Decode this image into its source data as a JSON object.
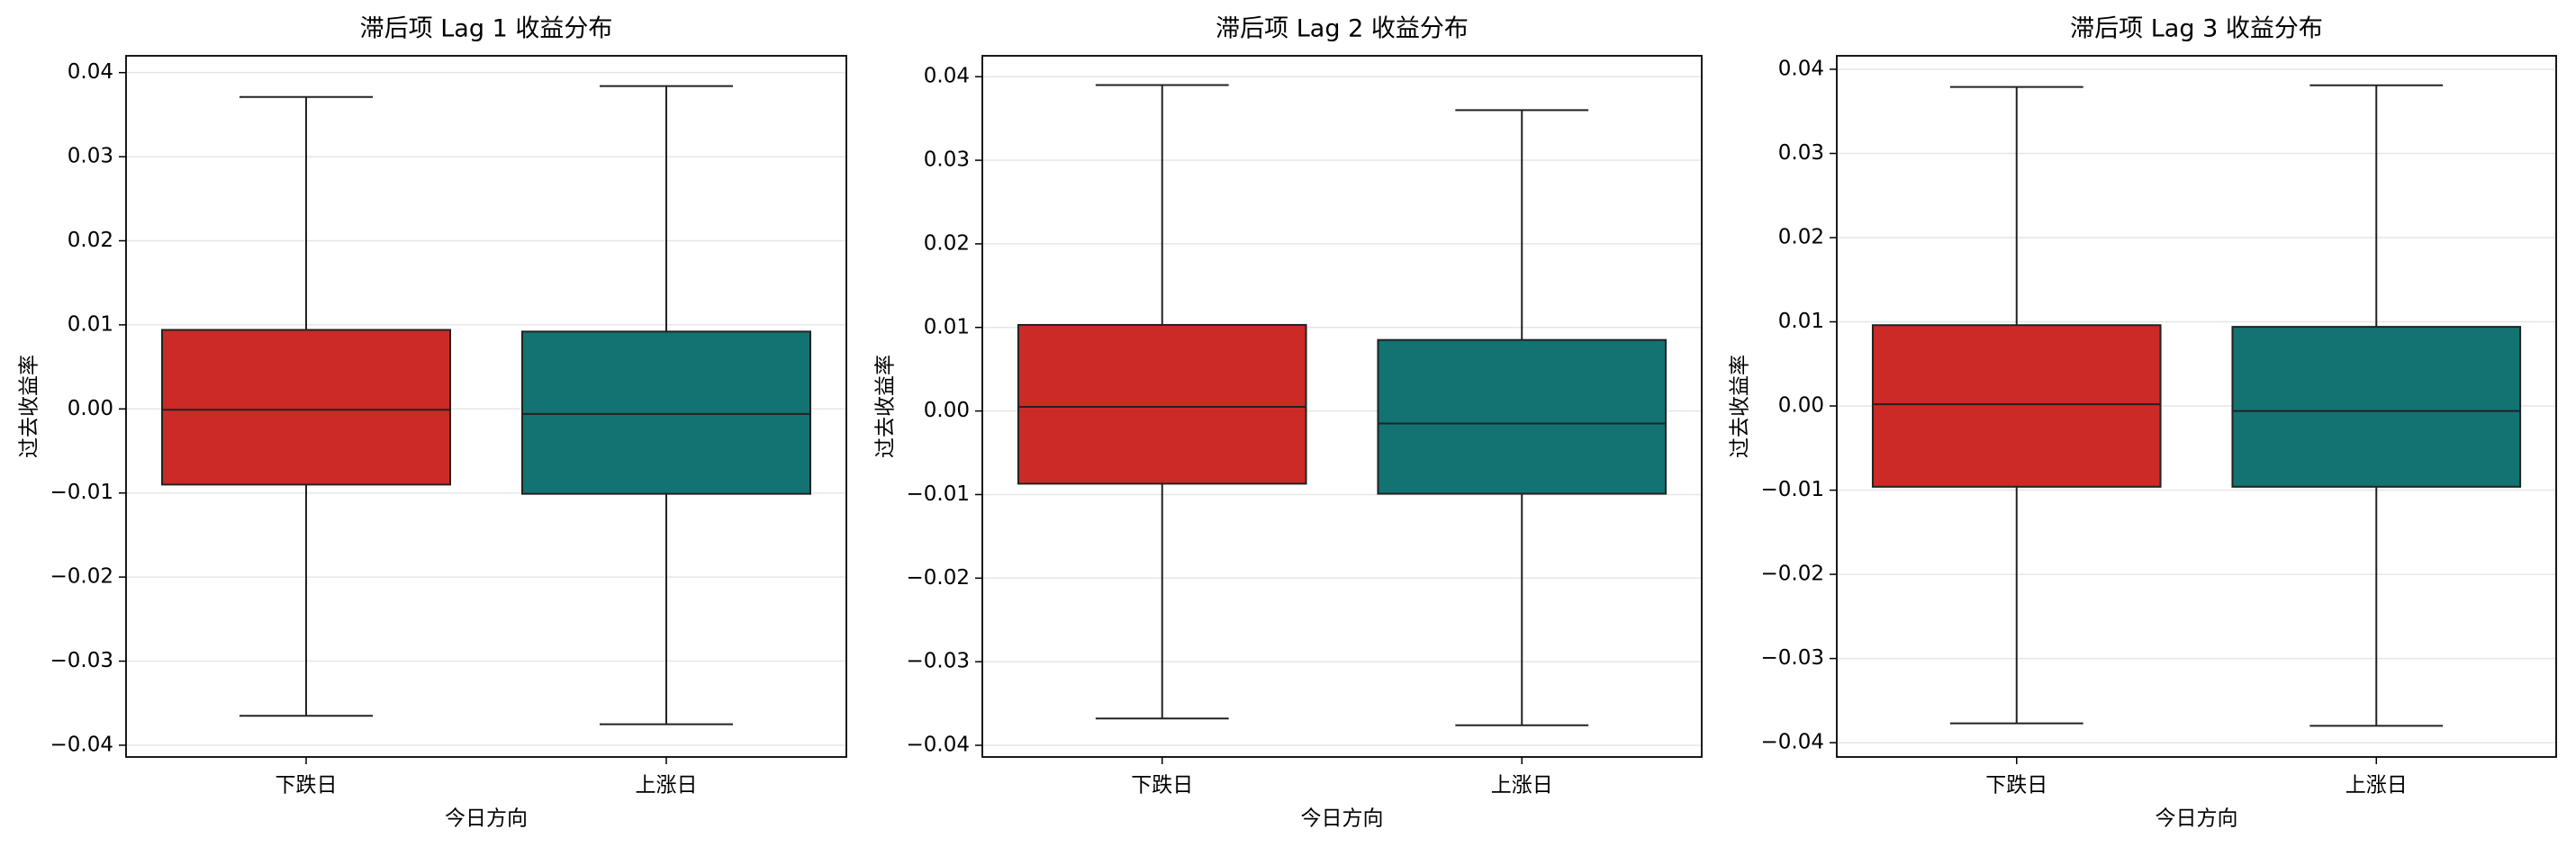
{
  "chart_data": [
    {
      "type": "box",
      "title": "滞后项 Lag 1 收益分布",
      "xlabel": "今日方向",
      "ylabel": "过去收益率",
      "categories": [
        "下跌日",
        "上涨日"
      ],
      "colors": [
        "#cb2a26",
        "#137272"
      ],
      "stats": [
        {
          "low": -0.0365,
          "q1": -0.009,
          "median": -0.0001,
          "q3": 0.0094,
          "high": 0.0371
        },
        {
          "low": -0.0375,
          "q1": -0.0101,
          "median": -0.0006,
          "q3": 0.0092,
          "high": 0.0384
        }
      ],
      "ylim": [
        -0.0414,
        0.042
      ],
      "grid": true,
      "yticks": [
        {
          "value": -0.04,
          "label": "−0.04"
        },
        {
          "value": -0.03,
          "label": "−0.03"
        },
        {
          "value": -0.02,
          "label": "−0.02"
        },
        {
          "value": -0.01,
          "label": "−0.01"
        },
        {
          "value": 0,
          "label": "0.00"
        },
        {
          "value": 0.01,
          "label": "0.01"
        },
        {
          "value": 0.02,
          "label": "0.02"
        },
        {
          "value": 0.03,
          "label": "0.03"
        },
        {
          "value": 0.04,
          "label": "0.04"
        }
      ]
    },
    {
      "type": "box",
      "title": "滞后项 Lag 2 收益分布",
      "xlabel": "今日方向",
      "ylabel": "过去收益率",
      "categories": [
        "下跌日",
        "上涨日"
      ],
      "colors": [
        "#cb2a26",
        "#137272"
      ],
      "stats": [
        {
          "low": -0.0368,
          "q1": -0.0087,
          "median": 0.0005,
          "q3": 0.0103,
          "high": 0.039
        },
        {
          "low": -0.0376,
          "q1": -0.0099,
          "median": -0.0015,
          "q3": 0.0085,
          "high": 0.036
        }
      ],
      "ylim": [
        -0.0414,
        0.0425
      ],
      "grid": true,
      "yticks": [
        {
          "value": -0.04,
          "label": "−0.04"
        },
        {
          "value": -0.03,
          "label": "−0.03"
        },
        {
          "value": -0.02,
          "label": "−0.02"
        },
        {
          "value": -0.01,
          "label": "−0.01"
        },
        {
          "value": 0,
          "label": "0.00"
        },
        {
          "value": 0.01,
          "label": "0.01"
        },
        {
          "value": 0.02,
          "label": "0.02"
        },
        {
          "value": 0.03,
          "label": "0.03"
        },
        {
          "value": 0.04,
          "label": "0.04"
        }
      ]
    },
    {
      "type": "box",
      "title": "滞后项 Lag 3 收益分布",
      "xlabel": "今日方向",
      "ylabel": "过去收益率",
      "categories": [
        "下跌日",
        "上涨日"
      ],
      "colors": [
        "#cb2a26",
        "#137272"
      ],
      "stats": [
        {
          "low": -0.0377,
          "q1": -0.0096,
          "median": 0.0002,
          "q3": 0.0096,
          "high": 0.0379
        },
        {
          "low": -0.038,
          "q1": -0.0096,
          "median": -0.0006,
          "q3": 0.0094,
          "high": 0.0381
        }
      ],
      "ylim": [
        -0.0417,
        0.0416
      ],
      "grid": true,
      "yticks": [
        {
          "value": -0.04,
          "label": "−0.04"
        },
        {
          "value": -0.03,
          "label": "−0.03"
        },
        {
          "value": -0.02,
          "label": "−0.02"
        },
        {
          "value": -0.01,
          "label": "−0.01"
        },
        {
          "value": 0,
          "label": "0.00"
        },
        {
          "value": 0.01,
          "label": "0.01"
        },
        {
          "value": 0.02,
          "label": "0.02"
        },
        {
          "value": 0.03,
          "label": "0.03"
        },
        {
          "value": 0.04,
          "label": "0.04"
        }
      ]
    }
  ]
}
